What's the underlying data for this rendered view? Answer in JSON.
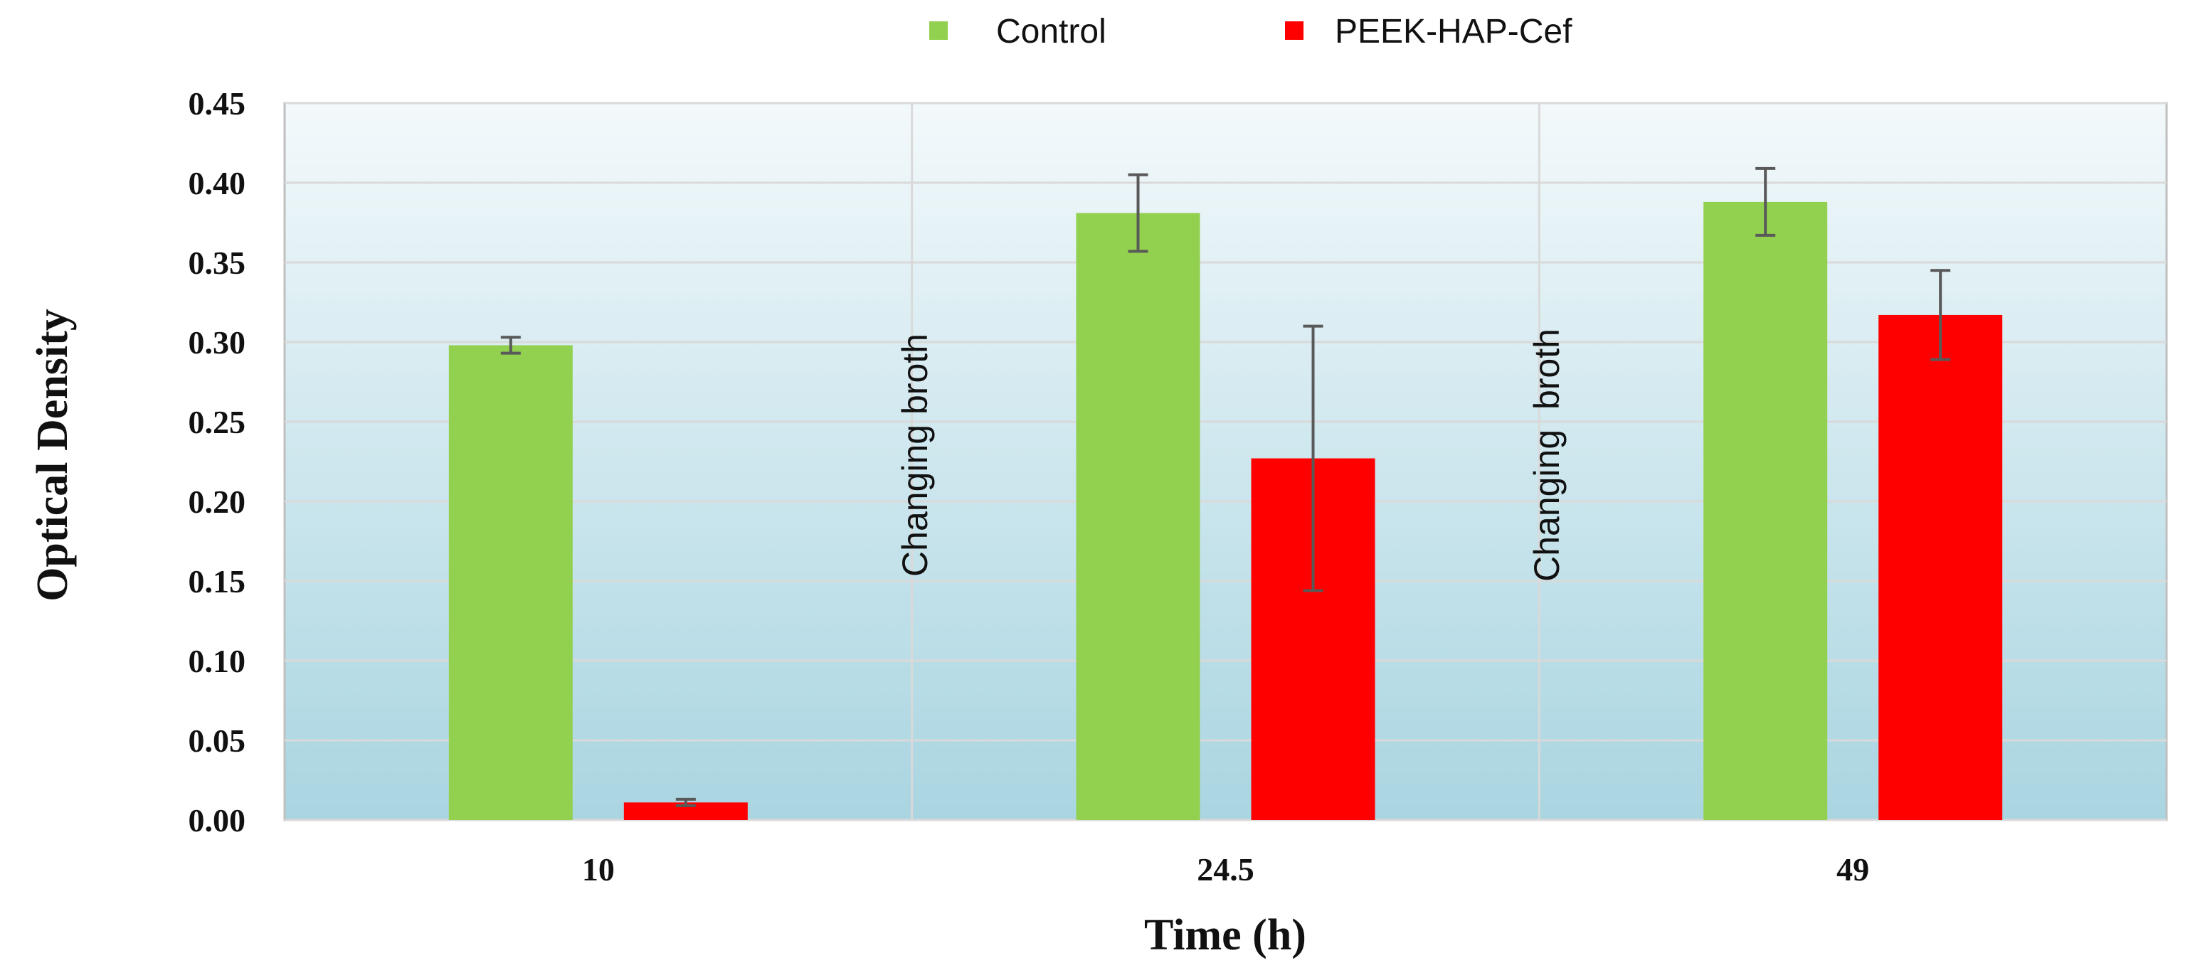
{
  "chart_data": {
    "type": "bar",
    "title": "",
    "xlabel": "Time (h)",
    "ylabel": "Optical Density",
    "categories": [
      "10",
      "24.5",
      "49"
    ],
    "ylim": [
      0,
      0.45
    ],
    "yticks": [
      "0.00",
      "0.05",
      "0.10",
      "0.15",
      "0.20",
      "0.25",
      "0.30",
      "0.35",
      "0.40",
      "0.45"
    ],
    "grid": true,
    "legend_position": "top-center",
    "series": [
      {
        "name": "Control",
        "color": "#92d050",
        "values": [
          0.298,
          0.381,
          0.388
        ],
        "errors": [
          0.005,
          0.024,
          0.021
        ]
      },
      {
        "name": "PEEK-HAP-Cef",
        "color": "#ff0000",
        "values": [
          0.011,
          0.227,
          0.317
        ],
        "errors": [
          0.002,
          0.083,
          0.028
        ]
      }
    ],
    "annotations": [
      "Changing broth",
      "Changing  broth"
    ]
  }
}
